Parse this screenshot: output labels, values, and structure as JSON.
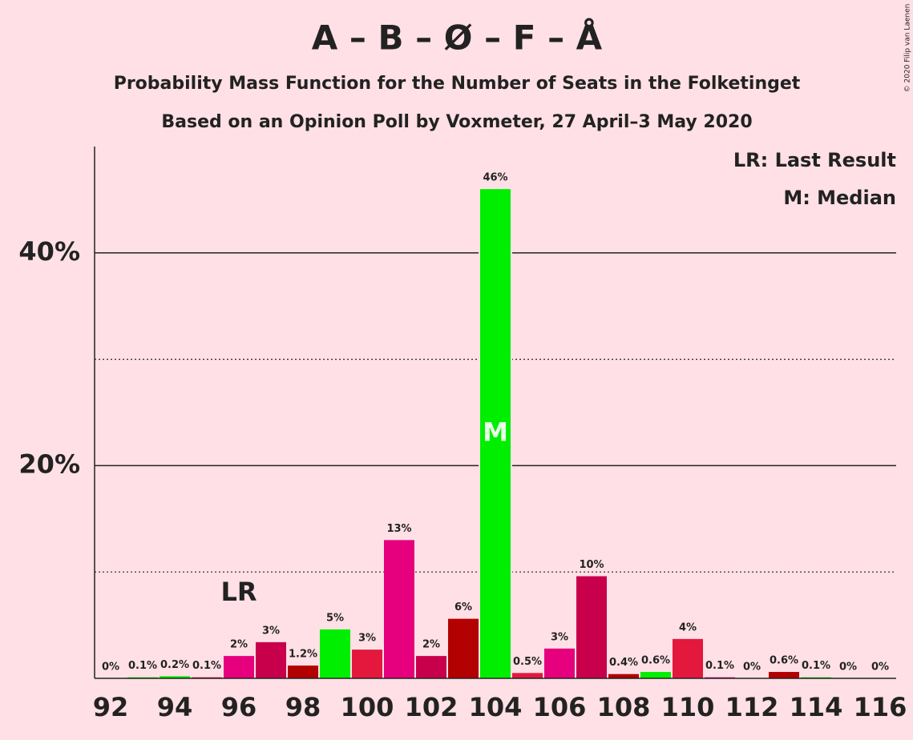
{
  "chart_data": {
    "type": "bar",
    "title": "A – B – Ø – F – Å",
    "subtitle": "Probability Mass Function for the Number of Seats in the Folketinget",
    "subtitle2": "Based on an Opinion Poll by Voxmeter, 27 April–3 May 2020",
    "categories": [
      92,
      null,
      94,
      null,
      96,
      null,
      98,
      null,
      100,
      null,
      102,
      null,
      104,
      null,
      106,
      null,
      108,
      null,
      110,
      null,
      112,
      null,
      114,
      null,
      116
    ],
    "values": [
      0,
      0.1,
      0.2,
      0.1,
      2.1,
      3.4,
      1.2,
      4.6,
      2.7,
      13,
      2.1,
      5.6,
      46,
      0.5,
      2.8,
      9.6,
      0.4,
      0.6,
      3.7,
      0.1,
      0,
      0.6,
      0.1,
      0,
      0
    ],
    "value_labels": [
      "0%",
      "0.1%",
      "0.2%",
      "0.1%",
      "2%",
      "3%",
      "1.2%",
      "5%",
      "3%",
      "13%",
      "2%",
      "6%",
      "46%",
      "0.5%",
      "3%",
      "10%",
      "0.4%",
      "0.6%",
      "4%",
      "0.1%",
      "0%",
      "0.6%",
      "0.1%",
      "0%",
      "0%"
    ],
    "colors": [
      "#b30000",
      "#00ee00",
      "#00ee00",
      "#e4173d",
      "#e6007e",
      "#c8004b",
      "#b30000",
      "#00ee00",
      "#e4173d",
      "#e6007e",
      "#c8004b",
      "#b30000",
      "#00ee00",
      "#e4173d",
      "#e6007e",
      "#c8004b",
      "#b30000",
      "#00ee00",
      "#e4173d",
      "#e6007e",
      "#c8004b",
      "#b30000",
      "#00ee00",
      "#e4173d",
      "#e6007e"
    ],
    "ylim": [
      0,
      50
    ],
    "yticks": [
      {
        "value": 20,
        "label": "20%"
      },
      {
        "value": 40,
        "label": "40%"
      }
    ],
    "minor_gridlines": [
      10,
      30
    ],
    "annotations": [
      {
        "text": "LR",
        "index": 4
      },
      {
        "text": "M",
        "index": 12
      }
    ],
    "legend": [
      "LR: Last Result",
      "M: Median"
    ],
    "copyright": "© 2020 Filip van Laenen"
  }
}
